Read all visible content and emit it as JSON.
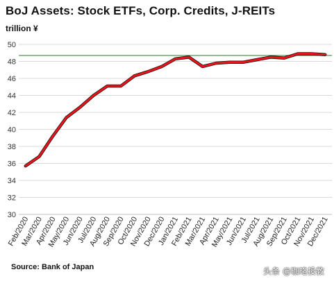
{
  "header": {
    "title": "BoJ Assets: Stock ETFs, Corp. Credits, J-REITs",
    "unit": "trillion ¥"
  },
  "footer": {
    "source": "Source: Bank of Japan",
    "watermark": "头条 @珈珞投教"
  },
  "chart_data": {
    "type": "line",
    "title": "BoJ Assets: Stock ETFs, Corp. Credits, J-REITs",
    "ylabel": "trillion ¥",
    "xlabel": "",
    "ylim": [
      30,
      50
    ],
    "yticks": [
      30,
      32,
      34,
      36,
      38,
      40,
      42,
      44,
      46,
      48,
      50
    ],
    "categories": [
      "Feb/2020",
      "Mar/2020",
      "Apr/2020",
      "May/2020",
      "Jun/2020",
      "Jul/2020",
      "Aug/2020",
      "Sep/2020",
      "Oct/2020",
      "Nov/2020",
      "Dec/2020",
      "Jan/2021",
      "Feb/2021",
      "Mar/2021",
      "Apr/2021",
      "May/2021",
      "Jun/2021",
      "Jul/2021",
      "Aug/2021",
      "Sep/2021",
      "Oct/2021",
      "Nov/2021",
      "Dec/2021"
    ],
    "series": [
      {
        "values": [
          35.7,
          36.8,
          39.2,
          41.4,
          42.6,
          44.0,
          45.1,
          45.1,
          46.3,
          46.8,
          47.4,
          48.3,
          48.5,
          47.4,
          47.8,
          47.9,
          47.9,
          48.2,
          48.5,
          48.4,
          48.9,
          48.9,
          48.8
        ],
        "color": "#e8141c"
      }
    ],
    "reference_line": {
      "value": 48.7,
      "color": "#3a8f3a"
    },
    "grid": "horizontal",
    "colors": {
      "line": "#e8141c",
      "line_shadow": "#111111",
      "grid": "#d9d9d9",
      "reference": "#3a8f3a"
    }
  }
}
